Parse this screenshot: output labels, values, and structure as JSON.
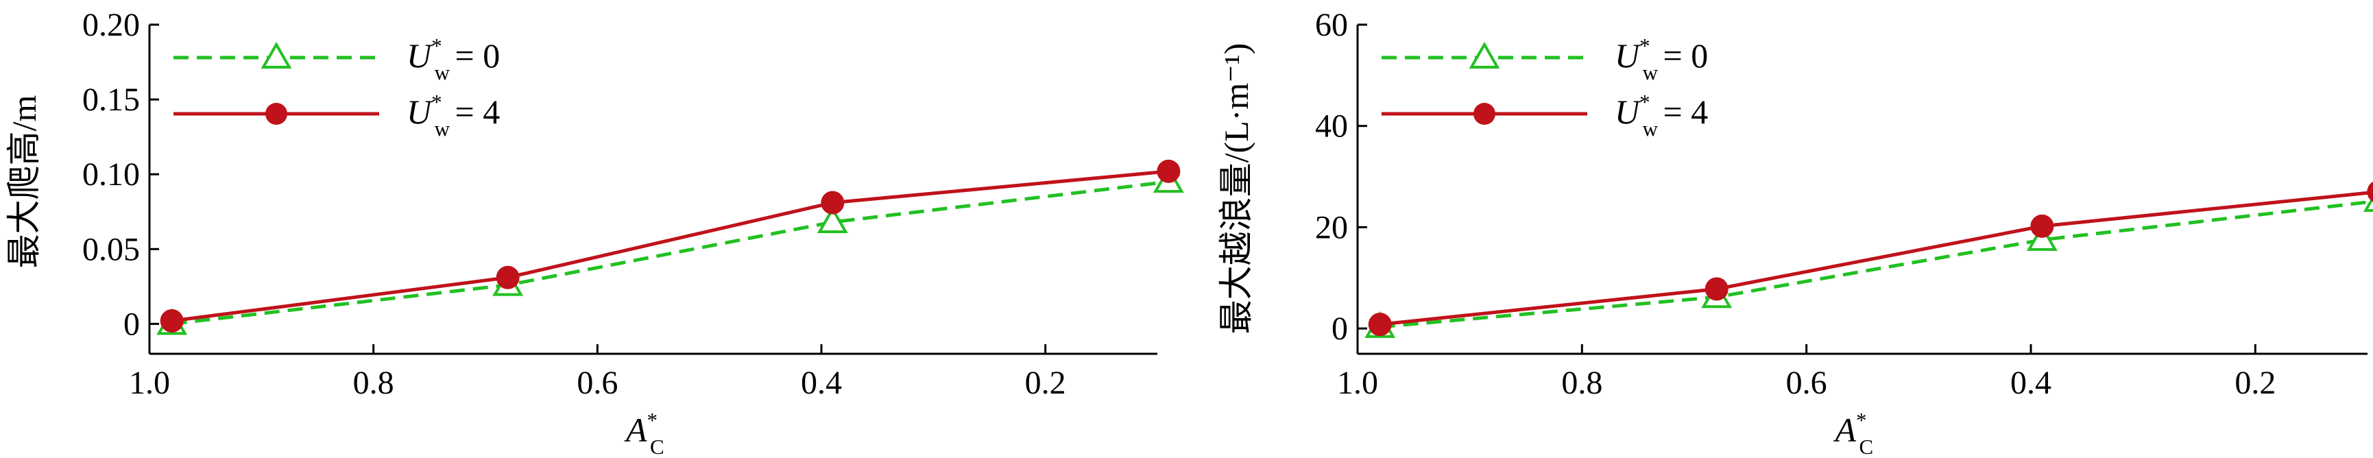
{
  "chart_data": [
    {
      "type": "line",
      "ylabel": "最大爬高/m",
      "xlabel": {
        "base": "A",
        "sup": "*",
        "sub": "C"
      },
      "x_reversed": true,
      "xlim": [
        1.0,
        0.1
      ],
      "ylim": [
        -0.02,
        0.2
      ],
      "xticks": [
        "1.0",
        "0.8",
        "0.6",
        "0.4",
        "0.2"
      ],
      "yticks": [
        "0.20",
        "0.15",
        "0.10",
        "0.05",
        "0"
      ],
      "legend_placement": "top-left",
      "series": [
        {
          "name": "U*w = 0",
          "legend": {
            "base": "U",
            "sup": "*",
            "sub": "w",
            "rest": "= 0"
          },
          "color": "#22c022",
          "style": "dashed",
          "marker": "open-triangle",
          "x": [
            0.98,
            0.68,
            0.39,
            0.09
          ],
          "y": [
            0.0,
            0.026,
            0.068,
            0.095
          ]
        },
        {
          "name": "U*w = 4",
          "legend": {
            "base": "U",
            "sup": "*",
            "sub": "w",
            "rest": "= 4"
          },
          "color": "#c0121a",
          "style": "solid",
          "marker": "filled-circle",
          "x": [
            0.98,
            0.68,
            0.39,
            0.09
          ],
          "y": [
            0.002,
            0.031,
            0.081,
            0.102
          ]
        }
      ]
    },
    {
      "type": "line",
      "ylabel": "最大越浪量/(L·m⁻¹)",
      "xlabel": {
        "base": "A",
        "sup": "*",
        "sub": "C"
      },
      "x_reversed": true,
      "xlim": [
        1.0,
        0.1
      ],
      "ylim": [
        -5,
        60
      ],
      "xticks": [
        "1.0",
        "0.8",
        "0.6",
        "0.4",
        "0.2"
      ],
      "yticks": [
        "60",
        "40",
        "20",
        "0"
      ],
      "legend_placement": "top-left",
      "series": [
        {
          "name": "U*w = 0",
          "legend": {
            "base": "U",
            "sup": "*",
            "sub": "w",
            "rest": "= 0"
          },
          "color": "#22c022",
          "style": "dashed",
          "marker": "open-triangle",
          "x": [
            0.98,
            0.68,
            0.39,
            0.09
          ],
          "y": [
            0.3,
            6.2,
            17.5,
            25.2
          ]
        },
        {
          "name": "U*w = 4",
          "legend": {
            "base": "U",
            "sup": "*",
            "sub": "w",
            "rest": "= 4"
          },
          "color": "#c0121a",
          "style": "solid",
          "marker": "filled-circle",
          "x": [
            0.98,
            0.68,
            0.39,
            0.09
          ],
          "y": [
            0.8,
            7.8,
            20.2,
            27.0
          ]
        }
      ]
    }
  ]
}
